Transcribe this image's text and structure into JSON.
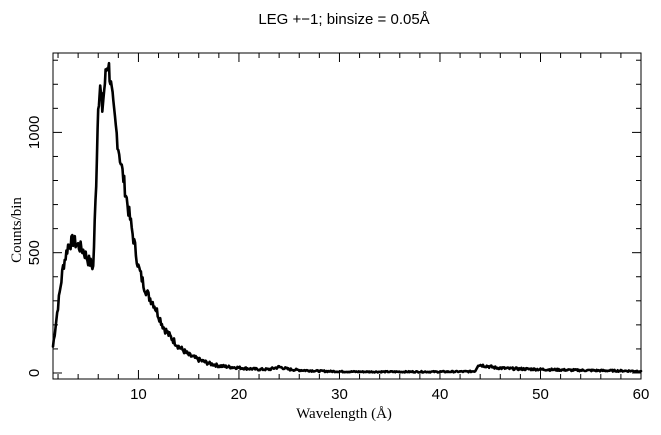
{
  "chart_data": {
    "type": "line",
    "title": "LEG +−1; binsize = 0.05Å",
    "xlabel": "Wavelength (Å)",
    "ylabel": "Counts/bin",
    "xlim": [
      1.5,
      60
    ],
    "ylim": [
      -25,
      1330
    ],
    "x_ticks": [
      10,
      20,
      30,
      40,
      50,
      60
    ],
    "y_ticks": [
      0,
      500,
      1000
    ],
    "x_tick_labels": [
      "10",
      "20",
      "30",
      "40",
      "50",
      "60"
    ],
    "y_tick_labels": [
      "0",
      "500",
      "1000"
    ],
    "grid": false,
    "series": [
      {
        "x": [
          1.5,
          2.0,
          2.5,
          3.0,
          3.5,
          4.0,
          4.5,
          5.0,
          5.5,
          5.8,
          6.0,
          6.2,
          6.4,
          6.6,
          6.8,
          7.0,
          7.2,
          7.5,
          8.0,
          8.5,
          9.0,
          9.5,
          10.0,
          10.5,
          11.0,
          11.5,
          12.0,
          12.5,
          13.0,
          14.0,
          15.0,
          16.0,
          17.0,
          18.0,
          19.0,
          20.0,
          21.0,
          22.0,
          23.0,
          24.0,
          25.0,
          26.0,
          27.0,
          28.0,
          30.0,
          32.0,
          35.0,
          38.0,
          40.0,
          43.0,
          43.5,
          43.8,
          44.5,
          45.5,
          47.0,
          50.0,
          53.0,
          56.0,
          60.0
        ],
        "y": [
          110,
          280,
          440,
          530,
          550,
          530,
          510,
          470,
          440,
          800,
          1130,
          1180,
          1100,
          1180,
          1260,
          1290,
          1220,
          1100,
          940,
          810,
          680,
          560,
          440,
          370,
          320,
          290,
          240,
          190,
          160,
          110,
          75,
          55,
          40,
          30,
          25,
          22,
          18,
          15,
          15,
          25,
          15,
          12,
          10,
          8,
          6,
          5,
          5,
          5,
          5,
          6,
          8,
          35,
          30,
          22,
          18,
          15,
          12,
          10,
          8
        ]
      }
    ]
  }
}
